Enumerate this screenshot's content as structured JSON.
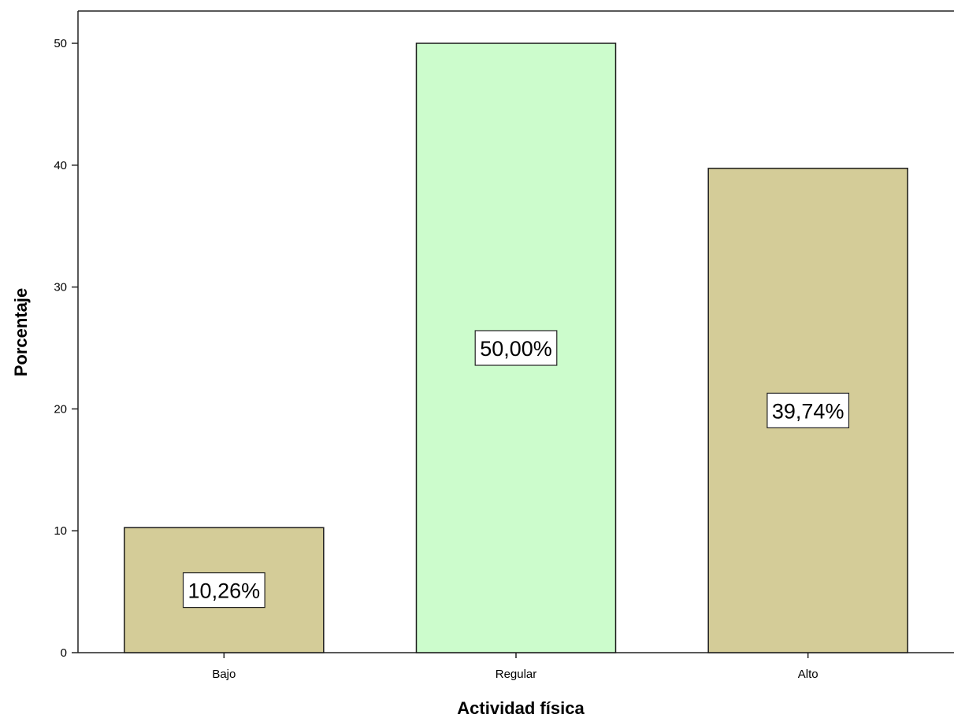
{
  "chart_data": {
    "type": "bar",
    "categories": [
      "Bajo",
      "Regular",
      "Alto"
    ],
    "values": [
      10.26,
      50.0,
      39.74
    ],
    "data_labels": [
      "10,26%",
      "50,00%",
      "39,74%"
    ],
    "title": "",
    "xlabel": "Actividad física",
    "ylabel": "Porcentaje",
    "ylim": [
      0,
      55
    ],
    "yticks": [
      0,
      10,
      20,
      30,
      40,
      50
    ],
    "grid": false,
    "colors": {
      "Bajo": "#d4cc98",
      "Regular": "#ccfccc",
      "Alto": "#d4cc98",
      "outline": "#1a1a1a",
      "background": "#ffffff"
    }
  }
}
